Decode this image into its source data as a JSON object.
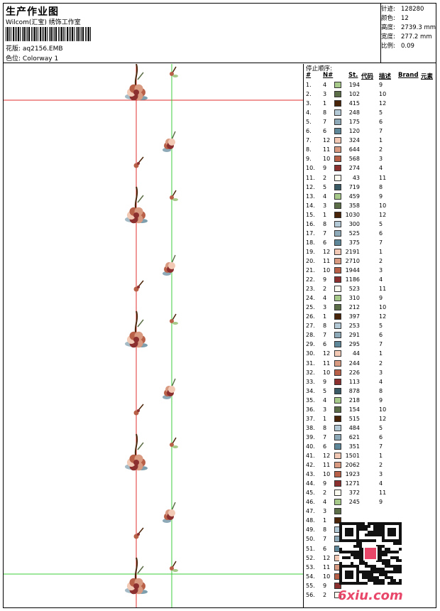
{
  "header": {
    "title": "生产作业图",
    "company": "Wilcom(汇宝) 绣饰工作室",
    "pattern_label": "花版:",
    "pattern_value": "aq2156.EMB",
    "colorway_label": "色位:",
    "colorway_value": "Colorway 1"
  },
  "specs": [
    {
      "label": "针迹:",
      "value": "128280"
    },
    {
      "label": "颜色:",
      "value": "12"
    },
    {
      "label": "高度:",
      "value": "2739.3 mm"
    },
    {
      "label": "宽度:",
      "value": "277.2 mm"
    },
    {
      "label": "比例:",
      "value": "0.09"
    }
  ],
  "stop_sequence": {
    "heading": "停止顺序:",
    "columns": {
      "index": "#",
      "number": "N#",
      "stitches": "St.",
      "code": "代码",
      "desc": "描述",
      "brand": "Brand",
      "element": "元素"
    },
    "rows": [
      {
        "i": "1.",
        "n": "4",
        "color": "#a7c98a",
        "st": "194",
        "d": "9"
      },
      {
        "i": "2.",
        "n": "3",
        "color": "#5b6e47",
        "st": "102",
        "d": "10"
      },
      {
        "i": "3.",
        "n": "1",
        "color": "#4a2408",
        "st": "415",
        "d": "12"
      },
      {
        "i": "4.",
        "n": "8",
        "color": "#b3cad6",
        "st": "248",
        "d": "5"
      },
      {
        "i": "5.",
        "n": "7",
        "color": "#8eaab8",
        "st": "175",
        "d": "6"
      },
      {
        "i": "6.",
        "n": "6",
        "color": "#5e8799",
        "st": "120",
        "d": "7"
      },
      {
        "i": "7.",
        "n": "12",
        "color": "#f2c9b4",
        "st": "324",
        "d": "1"
      },
      {
        "i": "8.",
        "n": "11",
        "color": "#d99a82",
        "st": "644",
        "d": "2"
      },
      {
        "i": "9.",
        "n": "10",
        "color": "#b86048",
        "st": "568",
        "d": "3"
      },
      {
        "i": "10.",
        "n": "9",
        "color": "#8c2f2f",
        "st": "274",
        "d": "4"
      },
      {
        "i": "11.",
        "n": "2",
        "color": "#fbfbf0",
        "st": "43",
        "d": "11"
      },
      {
        "i": "12.",
        "n": "5",
        "color": "#3a5a66",
        "st": "719",
        "d": "8"
      },
      {
        "i": "13.",
        "n": "4",
        "color": "#a7c98a",
        "st": "459",
        "d": "9"
      },
      {
        "i": "14.",
        "n": "3",
        "color": "#5b6e47",
        "st": "358",
        "d": "10"
      },
      {
        "i": "15.",
        "n": "1",
        "color": "#4a2408",
        "st": "1030",
        "d": "12"
      },
      {
        "i": "16.",
        "n": "8",
        "color": "#b3cad6",
        "st": "300",
        "d": "5"
      },
      {
        "i": "17.",
        "n": "7",
        "color": "#8eaab8",
        "st": "525",
        "d": "6"
      },
      {
        "i": "18.",
        "n": "6",
        "color": "#5e8799",
        "st": "375",
        "d": "7"
      },
      {
        "i": "19.",
        "n": "12",
        "color": "#f2c9b4",
        "st": "2191",
        "d": "1"
      },
      {
        "i": "20.",
        "n": "11",
        "color": "#d99a82",
        "st": "2710",
        "d": "2"
      },
      {
        "i": "21.",
        "n": "10",
        "color": "#b86048",
        "st": "1944",
        "d": "3"
      },
      {
        "i": "22.",
        "n": "9",
        "color": "#8c2f2f",
        "st": "1186",
        "d": "4"
      },
      {
        "i": "23.",
        "n": "2",
        "color": "#fbfbf0",
        "st": "523",
        "d": "11"
      },
      {
        "i": "24.",
        "n": "4",
        "color": "#a7c98a",
        "st": "310",
        "d": "9"
      },
      {
        "i": "25.",
        "n": "3",
        "color": "#5b6e47",
        "st": "212",
        "d": "10"
      },
      {
        "i": "26.",
        "n": "1",
        "color": "#4a2408",
        "st": "397",
        "d": "12"
      },
      {
        "i": "27.",
        "n": "8",
        "color": "#b3cad6",
        "st": "253",
        "d": "5"
      },
      {
        "i": "28.",
        "n": "7",
        "color": "#8eaab8",
        "st": "291",
        "d": "6"
      },
      {
        "i": "29.",
        "n": "6",
        "color": "#5e8799",
        "st": "295",
        "d": "7"
      },
      {
        "i": "30.",
        "n": "12",
        "color": "#f2c9b4",
        "st": "44",
        "d": "1"
      },
      {
        "i": "31.",
        "n": "11",
        "color": "#d99a82",
        "st": "244",
        "d": "2"
      },
      {
        "i": "32.",
        "n": "10",
        "color": "#b86048",
        "st": "226",
        "d": "3"
      },
      {
        "i": "33.",
        "n": "9",
        "color": "#8c2f2f",
        "st": "113",
        "d": "4"
      },
      {
        "i": "34.",
        "n": "5",
        "color": "#3a5a66",
        "st": "878",
        "d": "8"
      },
      {
        "i": "35.",
        "n": "4",
        "color": "#a7c98a",
        "st": "218",
        "d": "9"
      },
      {
        "i": "36.",
        "n": "3",
        "color": "#5b6e47",
        "st": "154",
        "d": "10"
      },
      {
        "i": "37.",
        "n": "1",
        "color": "#4a2408",
        "st": "515",
        "d": "12"
      },
      {
        "i": "38.",
        "n": "8",
        "color": "#b3cad6",
        "st": "484",
        "d": "5"
      },
      {
        "i": "39.",
        "n": "7",
        "color": "#8eaab8",
        "st": "621",
        "d": "6"
      },
      {
        "i": "40.",
        "n": "6",
        "color": "#5e8799",
        "st": "351",
        "d": "7"
      },
      {
        "i": "41.",
        "n": "12",
        "color": "#f2c9b4",
        "st": "1501",
        "d": "1"
      },
      {
        "i": "42.",
        "n": "11",
        "color": "#d99a82",
        "st": "2062",
        "d": "2"
      },
      {
        "i": "43.",
        "n": "10",
        "color": "#b86048",
        "st": "1923",
        "d": "3"
      },
      {
        "i": "44.",
        "n": "9",
        "color": "#8c2f2f",
        "st": "1271",
        "d": "4"
      },
      {
        "i": "45.",
        "n": "2",
        "color": "#fbfbf0",
        "st": "372",
        "d": "11"
      },
      {
        "i": "46.",
        "n": "4",
        "color": "#a7c98a",
        "st": "245",
        "d": "9"
      },
      {
        "i": "47.",
        "n": "3",
        "color": "#5b6e47",
        "st": "",
        "d": ""
      },
      {
        "i": "48.",
        "n": "1",
        "color": "#4a2408",
        "st": "",
        "d": ""
      },
      {
        "i": "49.",
        "n": "8",
        "color": "#b3cad6",
        "st": "",
        "d": ""
      },
      {
        "i": "50.",
        "n": "7",
        "color": "#8eaab8",
        "st": "",
        "d": ""
      },
      {
        "i": "51.",
        "n": "6",
        "color": "#5e8799",
        "st": "",
        "d": ""
      },
      {
        "i": "52.",
        "n": "12",
        "color": "#f2c9b4",
        "st": "",
        "d": ""
      },
      {
        "i": "53.",
        "n": "11",
        "color": "#d99a82",
        "st": "",
        "d": ""
      },
      {
        "i": "54.",
        "n": "10",
        "color": "#b86048",
        "st": "",
        "d": ""
      },
      {
        "i": "55.",
        "n": "9",
        "color": "#8c2f2f",
        "st": "",
        "d": ""
      },
      {
        "i": "56.",
        "n": "2",
        "color": "#fbfbf0",
        "st": "",
        "d": ""
      }
    ]
  },
  "watermark": {
    "text": "6xiu.com"
  },
  "colors": {
    "guide_red": "#e03030",
    "guide_green": "#3ccd3c"
  }
}
